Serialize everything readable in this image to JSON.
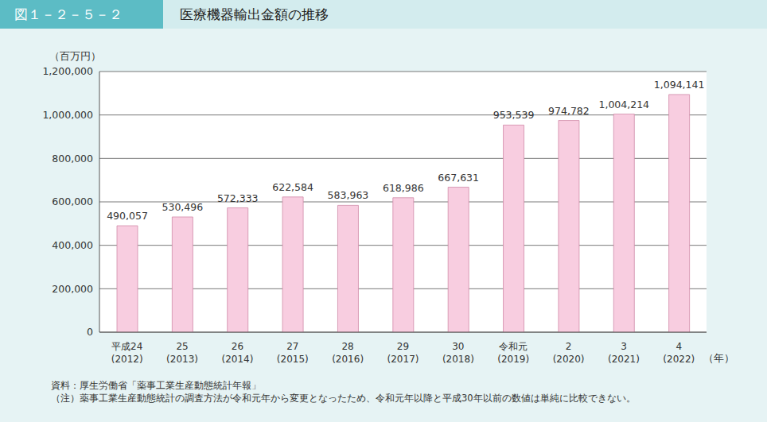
{
  "chart_data": {
    "type": "bar",
    "figure_label": "図１－２－５－２",
    "title": "医療機器輸出金額の推移",
    "y_label": "（百万円）",
    "x_label": "（年）",
    "categories": [
      "平成24\n(2012)",
      "25\n(2013)",
      "26\n(2014)",
      "27\n(2015)",
      "28\n(2016)",
      "29\n(2017)",
      "30\n(2018)",
      "令和元\n(2019)",
      "2\n(2020)",
      "3\n(2021)",
      "4\n(2022)"
    ],
    "values": [
      490057,
      530496,
      572333,
      622584,
      583963,
      618986,
      667631,
      953539,
      974782,
      1004214,
      1094141
    ],
    "value_labels": [
      "490,057",
      "530,496",
      "572,333",
      "622,584",
      "583,963",
      "618,986",
      "667,631",
      "953,539",
      "974,782",
      "1,004,214",
      "1,094,141"
    ],
    "data_labels": true,
    "color": "#f8cde0",
    "ylim": [
      0,
      1200000
    ],
    "yticks": [
      0,
      {
        "value": 200000,
        "label": "200,000"
      },
      {
        "value": 400000,
        "label": "400,000"
      },
      {
        "value": 600000,
        "label": "600,000"
      },
      {
        "value": 800000,
        "label": "800,000"
      },
      {
        "value": 1000000,
        "label": "1,000,000"
      },
      {
        "value": 1200000,
        "label": "1,200,000"
      }
    ],
    "grid": true,
    "notes": [
      "資料：厚生労働省「薬事工業生産動態統計年報」",
      "（注）薬事工業生産動態統計の調査方法が令和元年から変更となったため、令和元年以降と平成30年以前の数値は単純に比較できない。"
    ]
  }
}
